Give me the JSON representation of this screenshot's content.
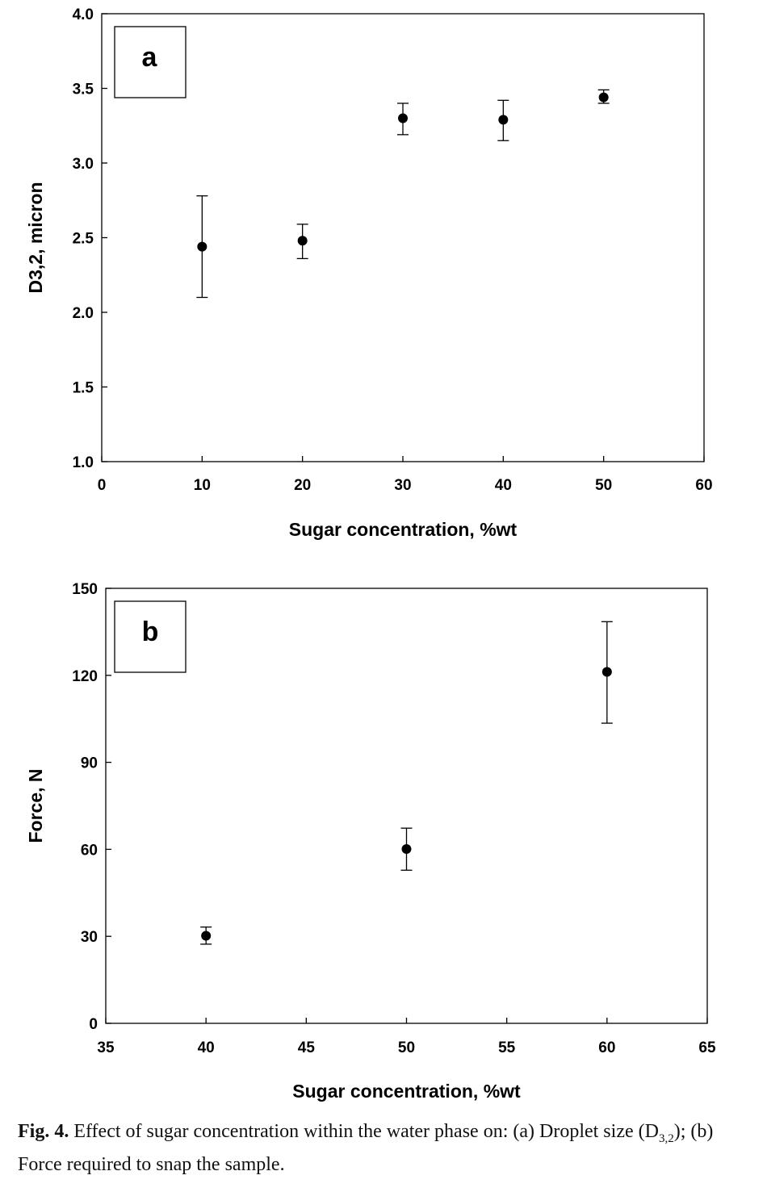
{
  "chart_data": [
    {
      "type": "scatter",
      "panel_label": "a",
      "xlabel": "Sugar concentration, %wt",
      "ylabel": "D3,2, micron",
      "xlim": [
        0,
        60
      ],
      "ylim": [
        1.0,
        4.0
      ],
      "xticks": [
        "0",
        "10",
        "20",
        "30",
        "40",
        "50",
        "60"
      ],
      "yticks": [
        "1.0",
        "1.5",
        "2.0",
        "2.5",
        "3.0",
        "3.5",
        "4.0"
      ],
      "grid": false,
      "points": [
        {
          "x": 10,
          "y": 2.44,
          "err_low": 2.1,
          "err_high": 2.78
        },
        {
          "x": 20,
          "y": 2.48,
          "err_low": 2.36,
          "err_high": 2.59
        },
        {
          "x": 30,
          "y": 3.3,
          "err_low": 3.19,
          "err_high": 3.4
        },
        {
          "x": 40,
          "y": 3.29,
          "err_low": 3.15,
          "err_high": 3.42
        },
        {
          "x": 50,
          "y": 3.44,
          "err_low": 3.4,
          "err_high": 3.49
        }
      ]
    },
    {
      "type": "scatter",
      "panel_label": "b",
      "xlabel": "Sugar concentration, %wt",
      "ylabel": "Force, N",
      "xlim": [
        35,
        65
      ],
      "ylim": [
        0,
        150
      ],
      "xticks": [
        "35",
        "40",
        "45",
        "50",
        "55",
        "60",
        "65"
      ],
      "yticks": [
        "0",
        "30",
        "60",
        "90",
        "120",
        "150"
      ],
      "grid": false,
      "points": [
        {
          "x": 40,
          "y": 30.2,
          "err_low": 27.3,
          "err_high": 33.2
        },
        {
          "x": 50,
          "y": 60.1,
          "err_low": 52.8,
          "err_high": 67.3
        },
        {
          "x": 60,
          "y": 121.2,
          "err_low": 103.5,
          "err_high": 138.5
        }
      ]
    }
  ],
  "caption": {
    "label": "Fig. 4.",
    "text_before_sub": " Effect of sugar concentration within the water phase on: (a) Droplet size (D",
    "subscript": "3,2",
    "text_after_sub": "); (b) Force required to snap the sample."
  }
}
